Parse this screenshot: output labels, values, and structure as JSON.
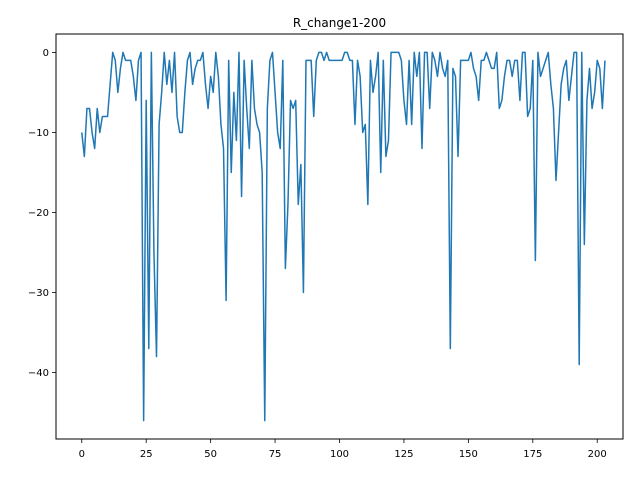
{
  "chart_data": {
    "type": "line",
    "title": "R_change1-200",
    "xlabel": "",
    "ylabel": "",
    "xlim": [
      -10,
      210
    ],
    "ylim": [
      -48.3,
      2.3
    ],
    "xticks": [
      0,
      25,
      50,
      75,
      100,
      125,
      150,
      175,
      200
    ],
    "yticks": [
      0,
      -10,
      -20,
      -30,
      -40
    ],
    "grid": false,
    "line_color": "#1f77b4",
    "series": [
      {
        "values": [
          -10,
          -13,
          -7,
          -7,
          -10,
          -12,
          -7,
          -10,
          -8,
          -8,
          -8,
          -4,
          0,
          -1,
          -5,
          -2,
          0,
          -1,
          -1,
          -1,
          -3,
          -6,
          -1,
          0,
          -46,
          -6,
          -37,
          0,
          -25,
          -38,
          -9,
          -5,
          0,
          -4,
          -1,
          -5,
          0,
          -8,
          -10,
          -10,
          -5,
          -1,
          0,
          -4,
          -2,
          -1,
          -1,
          0,
          -4,
          -7,
          -3,
          -5,
          0,
          -3,
          -9,
          -12,
          -31,
          -1,
          -15,
          -5,
          -11,
          0,
          -18,
          -1,
          -7,
          -12,
          -1,
          -7,
          -9,
          -10,
          -15,
          -46,
          -7,
          -1,
          0,
          -5,
          -10,
          -12,
          -1,
          -27,
          -19,
          -6,
          -7,
          -6,
          -19,
          -14,
          -30,
          -1,
          -1,
          -1,
          -8,
          -1,
          0,
          0,
          -1,
          0,
          -1,
          -1,
          -1,
          -1,
          -1,
          -1,
          0,
          0,
          -1,
          -1,
          -9,
          -1,
          -3,
          -10,
          -9,
          -19,
          -1,
          -5,
          -3,
          0,
          -15,
          -1,
          -13,
          -11,
          0,
          0,
          0,
          0,
          -1,
          -6,
          -9,
          -1,
          -9,
          0,
          -3,
          0,
          -12,
          0,
          0,
          -7,
          0,
          -1,
          -3,
          0,
          -2,
          -3,
          -1,
          -37,
          -2,
          -3,
          -13,
          -1,
          -1,
          -1,
          -1,
          0,
          -2,
          -3,
          -6,
          -1,
          -1,
          0,
          -1,
          -2,
          -2,
          0,
          -7,
          -6,
          -3,
          -1,
          -1,
          -3,
          -1,
          -1,
          -6,
          0,
          0,
          -8,
          -7,
          -1,
          -26,
          0,
          -3,
          -2,
          -1,
          0,
          -4,
          -7,
          -16,
          -10,
          -4,
          -2,
          -1,
          -6,
          -3,
          0,
          0,
          -39,
          0,
          -24,
          -6,
          -2,
          -7,
          -5,
          -1,
          -2,
          -7,
          -1
        ]
      }
    ]
  }
}
